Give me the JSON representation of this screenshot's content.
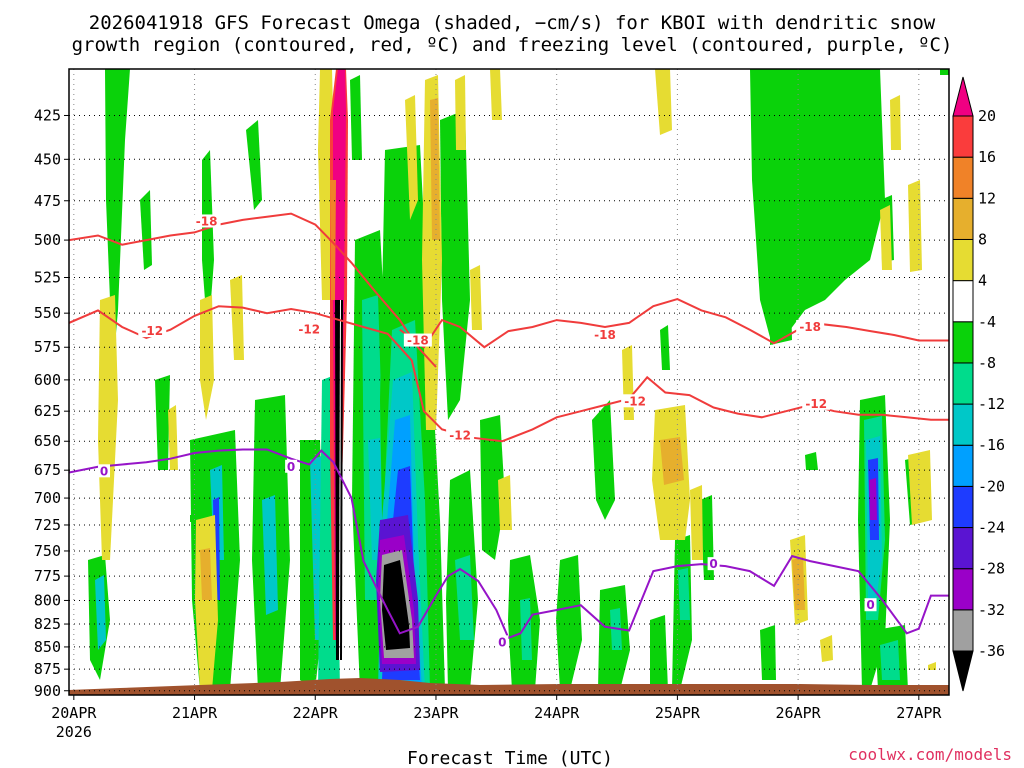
{
  "chart_data": {
    "type": "heatmap",
    "title_line1": "2026041918 GFS Forecast Omega (shaded, −cm/s) for KBOI with dendritic snow",
    "title_line2": "growth region (contoured, red, ºC) and freezing level (contoured, purple, ºC)",
    "xlabel": "Forecast Time (UTC)",
    "credit": "coolwx.com/models",
    "x_ticks": [
      "20APR",
      "21APR",
      "22APR",
      "23APR",
      "24APR",
      "25APR",
      "26APR",
      "27APR"
    ],
    "x_year": "2026",
    "x_range_days": [
      19.96,
      27.25
    ],
    "y_ticks": [
      425,
      450,
      475,
      500,
      525,
      550,
      575,
      600,
      625,
      650,
      675,
      700,
      725,
      750,
      775,
      800,
      825,
      850,
      875,
      900
    ],
    "y_range_hpa": [
      400,
      905
    ],
    "y_scale": "log-pressure",
    "grid": true,
    "colorbar": {
      "labels": [
        "20",
        "16",
        "12",
        "8",
        "4",
        "-4",
        "-8",
        "-12",
        "-16",
        "-20",
        "-24",
        "-28",
        "-32",
        "-36"
      ],
      "bins": [
        {
          "range": "< -36",
          "color": "#000000"
        },
        {
          "range": "-36 to -32",
          "color": "#a0a0a0"
        },
        {
          "range": "-32 to -28",
          "color": "#9a00c8"
        },
        {
          "range": "-28 to -24",
          "color": "#5a14d2"
        },
        {
          "range": "-24 to -20",
          "color": "#1e3cff"
        },
        {
          "range": "-20 to -16",
          "color": "#00a0ff"
        },
        {
          "range": "-16 to -12",
          "color": "#00c8c8"
        },
        {
          "range": "-12 to -8",
          "color": "#00dc8c"
        },
        {
          "range": "-8 to -4",
          "color": "#0ad20a"
        },
        {
          "range": "-4 to 4",
          "color": "#ffffff"
        },
        {
          "range": "4 to 8",
          "color": "#e6dc32"
        },
        {
          "range": "8 to 12",
          "color": "#e6af2d"
        },
        {
          "range": "12 to 16",
          "color": "#f08228"
        },
        {
          "range": "16 to 20",
          "color": "#fa3c3c"
        },
        {
          "range": "> 20",
          "color": "#f00082"
        }
      ]
    },
    "contours": [
      {
        "name": "-18",
        "color": "#f03c3c",
        "points": [
          [
            19.96,
            500
          ],
          [
            20.2,
            497
          ],
          [
            20.4,
            503
          ],
          [
            20.6,
            500
          ],
          [
            20.8,
            497
          ],
          [
            21.0,
            495
          ],
          [
            21.2,
            490
          ],
          [
            21.4,
            487
          ],
          [
            21.6,
            485
          ],
          [
            21.8,
            483
          ],
          [
            22.0,
            490
          ],
          [
            22.15,
            502
          ],
          [
            22.3,
            515
          ],
          [
            22.5,
            535
          ],
          [
            22.7,
            555
          ],
          [
            22.85,
            575
          ],
          [
            23.0,
            590
          ]
        ],
        "labels": [
          [
            21.1,
            488
          ]
        ]
      },
      {
        "name": "-12",
        "color": "#f03c3c",
        "points": [
          [
            19.96,
            557
          ],
          [
            20.2,
            548
          ],
          [
            20.4,
            560
          ],
          [
            20.6,
            568
          ],
          [
            20.8,
            562
          ],
          [
            21.0,
            552
          ],
          [
            21.2,
            545
          ],
          [
            21.4,
            546
          ],
          [
            21.6,
            550
          ],
          [
            21.8,
            547
          ],
          [
            22.0,
            550
          ],
          [
            22.2,
            555
          ],
          [
            22.4,
            560
          ],
          [
            22.6,
            565
          ],
          [
            22.8,
            585
          ],
          [
            22.9,
            625
          ],
          [
            23.05,
            640
          ],
          [
            23.3,
            647
          ],
          [
            23.55,
            650
          ],
          [
            23.8,
            640
          ],
          [
            24.0,
            630
          ],
          [
            24.2,
            625
          ],
          [
            24.4,
            620
          ],
          [
            24.6,
            615
          ],
          [
            24.75,
            598
          ],
          [
            24.9,
            610
          ],
          [
            25.1,
            612
          ],
          [
            25.3,
            622
          ],
          [
            25.5,
            627
          ],
          [
            25.7,
            630
          ],
          [
            25.9,
            625
          ],
          [
            26.1,
            620
          ],
          [
            26.3,
            625
          ],
          [
            26.5,
            628
          ],
          [
            26.7,
            628
          ],
          [
            26.9,
            630
          ],
          [
            27.1,
            632
          ],
          [
            27.25,
            632
          ]
        ],
        "labels": [
          [
            20.65,
            563
          ],
          [
            21.95,
            562
          ],
          [
            23.2,
            645
          ],
          [
            24.65,
            617
          ],
          [
            26.15,
            619
          ]
        ]
      },
      {
        "name": "-18",
        "color": "#f03c3c",
        "points": [
          [
            22.7,
            562
          ],
          [
            22.9,
            575
          ],
          [
            23.05,
            555
          ],
          [
            23.2,
            560
          ],
          [
            23.4,
            575
          ],
          [
            23.6,
            563
          ],
          [
            23.8,
            560
          ],
          [
            24.0,
            555
          ],
          [
            24.2,
            557
          ],
          [
            24.4,
            560
          ],
          [
            24.6,
            557
          ],
          [
            24.8,
            545
          ],
          [
            25.0,
            540
          ],
          [
            25.2,
            548
          ],
          [
            25.4,
            553
          ],
          [
            25.6,
            562
          ],
          [
            25.8,
            572
          ],
          [
            26.0,
            562
          ],
          [
            26.2,
            558
          ],
          [
            26.4,
            560
          ],
          [
            26.6,
            563
          ],
          [
            26.8,
            566
          ],
          [
            27.0,
            570
          ],
          [
            27.25,
            570
          ]
        ],
        "labels": [
          [
            22.85,
            570
          ],
          [
            24.4,
            566
          ],
          [
            26.1,
            560
          ]
        ]
      },
      {
        "name": "0",
        "color": "#9614c8",
        "points": [
          [
            19.96,
            677
          ],
          [
            20.2,
            672
          ],
          [
            20.4,
            670
          ],
          [
            20.6,
            668
          ],
          [
            20.8,
            665
          ],
          [
            21.0,
            660
          ],
          [
            21.2,
            658
          ],
          [
            21.4,
            657
          ],
          [
            21.6,
            657
          ],
          [
            21.8,
            665
          ],
          [
            21.95,
            670
          ],
          [
            22.05,
            658
          ],
          [
            22.15,
            668
          ],
          [
            22.3,
            700
          ],
          [
            22.4,
            760
          ],
          [
            22.5,
            785
          ],
          [
            22.6,
            810
          ],
          [
            22.7,
            835
          ],
          [
            22.85,
            828
          ],
          [
            23.0,
            795
          ],
          [
            23.1,
            775
          ],
          [
            23.2,
            768
          ],
          [
            23.35,
            780
          ],
          [
            23.5,
            810
          ],
          [
            23.6,
            840
          ],
          [
            23.7,
            835
          ],
          [
            23.8,
            815
          ],
          [
            24.0,
            810
          ],
          [
            24.2,
            805
          ],
          [
            24.4,
            828
          ],
          [
            24.6,
            832
          ],
          [
            24.8,
            770
          ],
          [
            25.0,
            765
          ],
          [
            25.2,
            763
          ],
          [
            25.4,
            765
          ],
          [
            25.6,
            770
          ],
          [
            25.8,
            785
          ],
          [
            25.95,
            755
          ],
          [
            26.1,
            760
          ],
          [
            26.3,
            765
          ],
          [
            26.5,
            770
          ],
          [
            26.7,
            800
          ],
          [
            26.9,
            835
          ],
          [
            27.0,
            830
          ],
          [
            27.1,
            795
          ],
          [
            27.25,
            795
          ]
        ],
        "labels": [
          [
            20.25,
            676
          ],
          [
            21.8,
            672
          ],
          [
            23.55,
            845
          ],
          [
            25.3,
            763
          ],
          [
            26.6,
            805
          ]
        ]
      }
    ]
  }
}
